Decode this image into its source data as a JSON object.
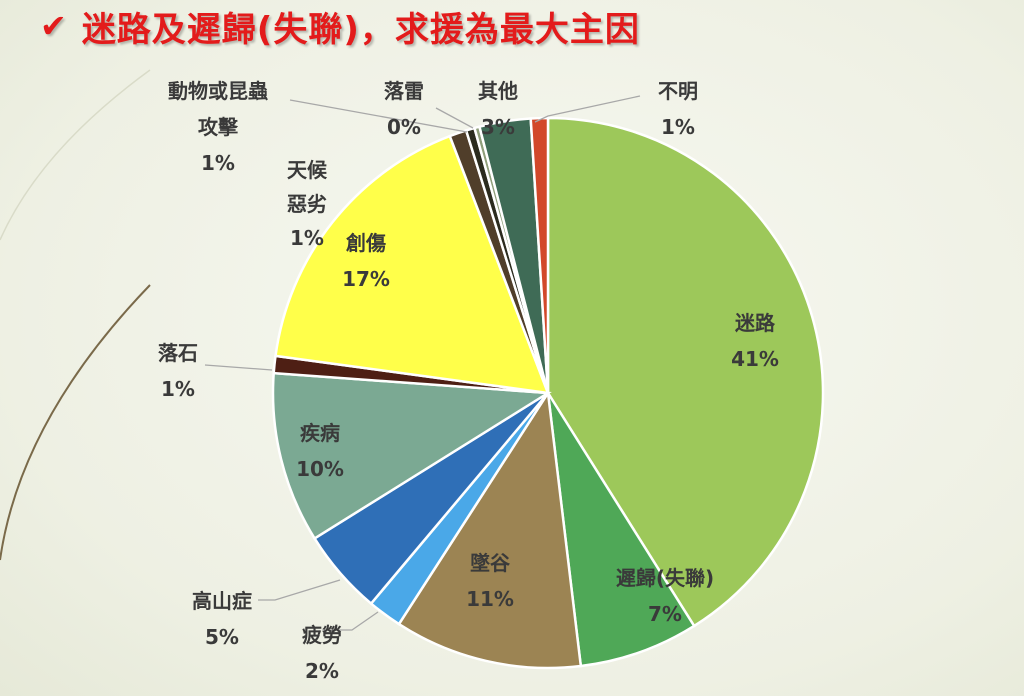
{
  "title": "迷路及遲歸(失聯)，求援為最大主因",
  "title_icon": "checkmark-icon",
  "colors": {
    "title": "#e31b1b"
  },
  "chart_data": {
    "type": "pie",
    "title": "迷路及遲歸(失聯)，求援為最大主因",
    "slices": [
      {
        "label": "迷路",
        "value": 41,
        "display": "41%",
        "color": "#9dc85a"
      },
      {
        "label": "遲歸(失聯)",
        "value": 7,
        "display": "7%",
        "color": "#4fa857"
      },
      {
        "label": "墜谷",
        "value": 11,
        "display": "11%",
        "color": "#9c8453"
      },
      {
        "label": "疲勞",
        "value": 2,
        "display": "2%",
        "color": "#4aa8e8"
      },
      {
        "label": "高山症",
        "value": 5,
        "display": "5%",
        "color": "#2f6fb7"
      },
      {
        "label": "疾病",
        "value": 10,
        "display": "10%",
        "color": "#7ba993"
      },
      {
        "label": "落石",
        "value": 1,
        "display": "1%",
        "color": "#4e1f14"
      },
      {
        "label": "創傷",
        "value": 17,
        "display": "17%",
        "color": "#ffff4a"
      },
      {
        "label": "天候惡劣",
        "label_lines": [
          "天候",
          "惡劣"
        ],
        "value": 1,
        "display": "1%",
        "color": "#503e2a"
      },
      {
        "label": "動物或昆蟲攻擊",
        "label_lines": [
          "動物或昆蟲",
          "攻擊"
        ],
        "value": 0.5,
        "display": "1%",
        "color": "#2b2b1e"
      },
      {
        "label": "落雷",
        "value": 0.3,
        "display": "0%",
        "color": "#8f9e7a"
      },
      {
        "label": "其他",
        "value": 3,
        "display": "3%",
        "color": "#3f6b56"
      },
      {
        "label": "不明",
        "value": 1,
        "display": "1%",
        "color": "#d2482a"
      }
    ]
  }
}
